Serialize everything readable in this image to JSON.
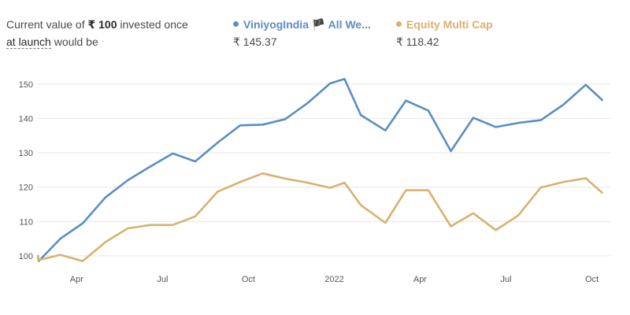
{
  "header": {
    "caption_prefix": "Current value of ",
    "caption_amount": "₹ 100",
    "caption_suffix": " invested once",
    "caption_link": "at launch",
    "caption_end": " would be"
  },
  "colors": {
    "series_0": "#5b8ec2",
    "series_1": "#d9b170",
    "grid": "#e6e6e6",
    "tick_text": "#555555"
  },
  "chart_data": {
    "type": "line",
    "title": "",
    "xlabel": "",
    "ylabel": "",
    "ylim": [
      97,
      155
    ],
    "xlim": [
      0,
      28
    ],
    "grid": true,
    "yticks": [
      100,
      110,
      120,
      130,
      140,
      150
    ],
    "xticks": [
      {
        "x": 1.9,
        "label": "Apr"
      },
      {
        "x": 6.1,
        "label": "Jul"
      },
      {
        "x": 10.3,
        "label": "Oct"
      },
      {
        "x": 14.5,
        "label": "2022"
      },
      {
        "x": 18.7,
        "label": "Apr"
      },
      {
        "x": 22.9,
        "label": "Jul"
      },
      {
        "x": 27.1,
        "label": "Oct"
      }
    ],
    "x": [
      0,
      0.05,
      1.1,
      2.2,
      3.3,
      4.4,
      5.5,
      6.6,
      7.7,
      8.8,
      9.9,
      11.0,
      12.1,
      13.2,
      14.3,
      15.0,
      15.8,
      17.0,
      18.0,
      19.1,
      20.2,
      21.3,
      22.4,
      23.5,
      24.6,
      25.7,
      26.8,
      27.6
    ],
    "series": [
      {
        "name": "ViniyogIndia 🏴 All We...",
        "legend_value": "₹ 145.37",
        "color": "#5b8ec2",
        "values": [
          100,
          98.5,
          105,
          109.5,
          117,
          122,
          126,
          129.8,
          127.5,
          133,
          138,
          138.2,
          139.8,
          144.5,
          150.2,
          151.5,
          141,
          136.5,
          145.2,
          142.3,
          130.5,
          140.2,
          137.5,
          138.7,
          139.5,
          144,
          149.8,
          145.4
        ]
      },
      {
        "name": "Equity Multi Cap",
        "legend_value": "₹ 118.42",
        "color": "#d9b170",
        "values": [
          100,
          98.8,
          100.3,
          98.5,
          104,
          108,
          109,
          109,
          111.5,
          118.7,
          121.5,
          124,
          122.5,
          121.3,
          119.8,
          121.3,
          114.8,
          109.6,
          119.1,
          119.1,
          108.6,
          112.4,
          107.5,
          111.8,
          119.9,
          121.5,
          122.6,
          118.4
        ]
      }
    ]
  }
}
